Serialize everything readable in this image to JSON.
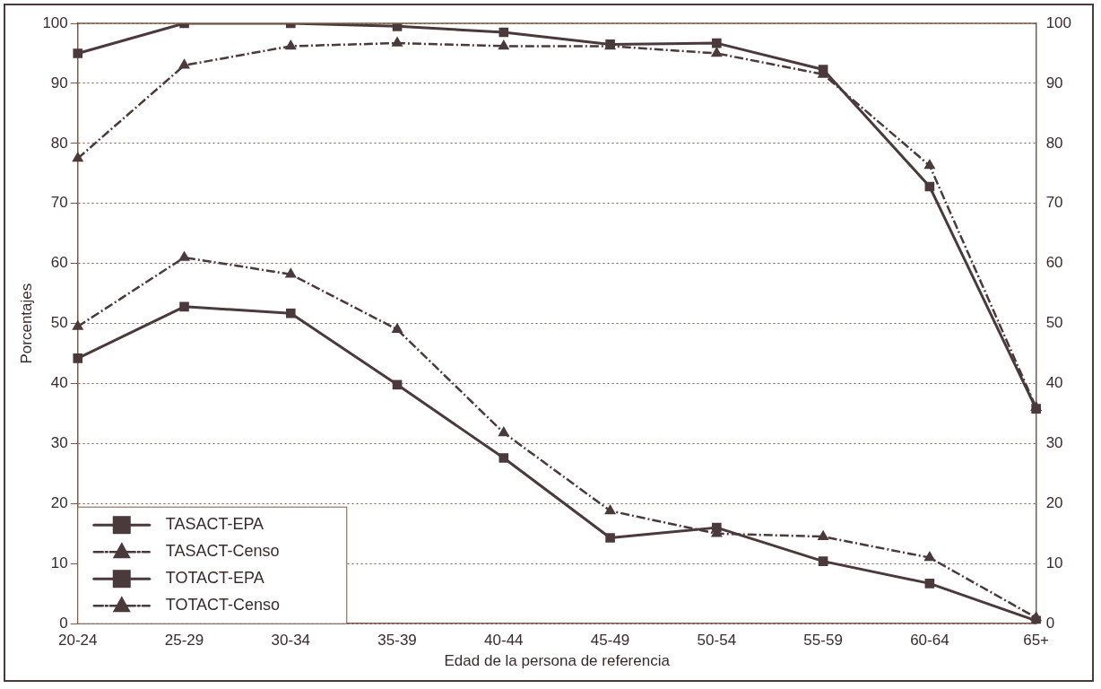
{
  "chart_data": {
    "type": "line",
    "xlabel": "Edad de la persona de referencia",
    "ylabel": "Porcentajes",
    "categories": [
      "20-24",
      "25-29",
      "30-34",
      "35-39",
      "40-44",
      "45-49",
      "50-54",
      "55-59",
      "60-64",
      "65+"
    ],
    "series": [
      {
        "name": "TASACT-EPA",
        "color": "#4a3a3c",
        "marker": "square",
        "line_style": "solid",
        "values": [
          95,
          100,
          100,
          99.5,
          98.5,
          96.5,
          96.7,
          92.3,
          72.8,
          35.8
        ]
      },
      {
        "name": "TASACT-Censo",
        "color": "#4a3a3c",
        "marker": "triangle",
        "line_style": "dashed",
        "values": [
          77.5,
          93,
          96.2,
          96.7,
          96.2,
          96.2,
          95,
          91.5,
          76.3,
          36
        ]
      },
      {
        "name": "TOTACT-EPA",
        "color": "#4a3a3c",
        "marker": "square",
        "line_style": "solid",
        "values": [
          44.2,
          52.8,
          51.7,
          39.8,
          27.6,
          14.3,
          16,
          10.4,
          6.7,
          0.5
        ]
      },
      {
        "name": "TOTACT-Censo",
        "color": "#4a3a3c",
        "marker": "triangle",
        "line_style": "dashed",
        "values": [
          49.5,
          61,
          58.2,
          49,
          31.8,
          18.8,
          15,
          14.5,
          11,
          1
        ]
      }
    ],
    "ylim": [
      0,
      100
    ],
    "yticks": [
      0,
      10,
      20,
      30,
      40,
      50,
      60,
      70,
      80,
      90,
      100
    ],
    "y2lim": [
      0,
      100
    ],
    "y2ticks": [
      0,
      10,
      20,
      30,
      40,
      50,
      60,
      70,
      80,
      90,
      100
    ],
    "grid": "y",
    "legend": "bottom left"
  }
}
